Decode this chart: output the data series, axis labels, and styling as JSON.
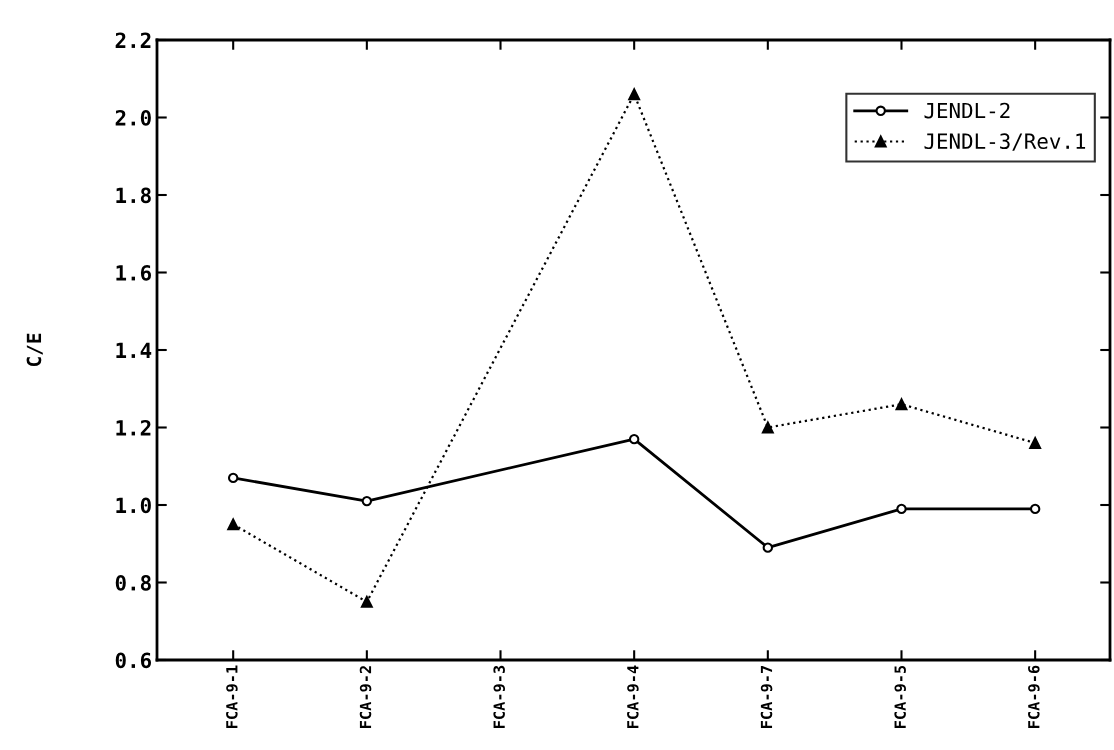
{
  "chart_data": {
    "type": "line",
    "ylabel": "C/E",
    "categories": [
      "FCA-9-1",
      "FCA-9-2",
      "FCA-9-3",
      "FCA-9-4",
      "FCA-9-7",
      "FCA-9-5",
      "FCA-9-6"
    ],
    "series": [
      {
        "name": "JENDL-2",
        "color": "#000000",
        "marker": "circle",
        "line_style": "solid",
        "values": [
          1.07,
          1.01,
          null,
          1.17,
          0.89,
          0.99,
          0.99
        ]
      },
      {
        "name": "JENDL-3/Rev.1",
        "color": "#000000",
        "marker": "triangle",
        "line_style": "dotted",
        "values": [
          0.95,
          0.75,
          null,
          2.06,
          1.2,
          1.26,
          1.16
        ]
      }
    ],
    "ylim": [
      0.6,
      2.2
    ],
    "yticks": [
      {
        "value": 0.6,
        "label": "0.6"
      },
      {
        "value": 0.8,
        "label": "0.8"
      },
      {
        "value": 1.0,
        "label": "1.0"
      },
      {
        "value": 1.2,
        "label": "1.2"
      },
      {
        "value": 1.4,
        "label": "1.4"
      },
      {
        "value": 1.6,
        "label": "1.6"
      },
      {
        "value": 1.8,
        "label": "1.8"
      },
      {
        "value": 2.0,
        "label": "2.0"
      },
      {
        "value": 2.2,
        "label": "2.2"
      }
    ],
    "grid": false,
    "legend": "top right"
  }
}
